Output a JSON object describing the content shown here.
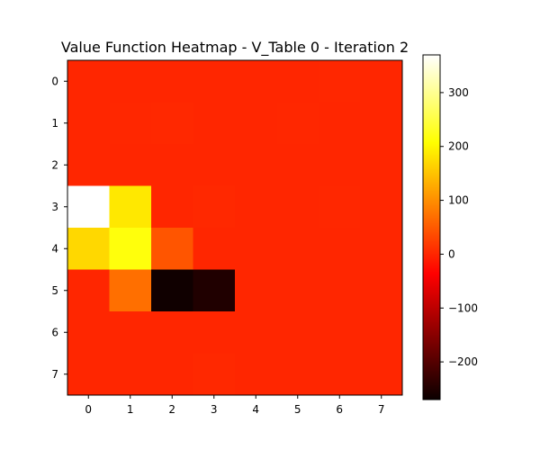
{
  "chart_data": {
    "type": "heatmap",
    "title": "Value Function Heatmap - V_Table 0 - Iteration 2",
    "xlabel": "",
    "ylabel": "",
    "x_tick_labels": [
      "0",
      "1",
      "2",
      "3",
      "4",
      "5",
      "6",
      "7"
    ],
    "y_tick_labels": [
      "0",
      "1",
      "2",
      "3",
      "4",
      "5",
      "6",
      "7"
    ],
    "colormap": "hot",
    "vmin": -270,
    "vmax": 370,
    "colorbar_ticks": [
      -200,
      -100,
      0,
      100,
      200,
      300
    ],
    "colorbar_tick_labels": [
      "−200",
      "−100",
      "0",
      "100",
      "200",
      "300"
    ],
    "grid": false,
    "values": [
      [
        0,
        0,
        0,
        0,
        0,
        0,
        1,
        0
      ],
      [
        0,
        1,
        2,
        0,
        0,
        1,
        0,
        0
      ],
      [
        0,
        0,
        0,
        0,
        0,
        0,
        0,
        0
      ],
      [
        370,
        185,
        0,
        2,
        0,
        0,
        1,
        0
      ],
      [
        170,
        215,
        45,
        0,
        0,
        0,
        0,
        0
      ],
      [
        0,
        70,
        -265,
        -250,
        0,
        0,
        0,
        0
      ],
      [
        0,
        0,
        0,
        0,
        0,
        0,
        0,
        0
      ],
      [
        0,
        0,
        0,
        2,
        0,
        0,
        0,
        0
      ]
    ]
  }
}
